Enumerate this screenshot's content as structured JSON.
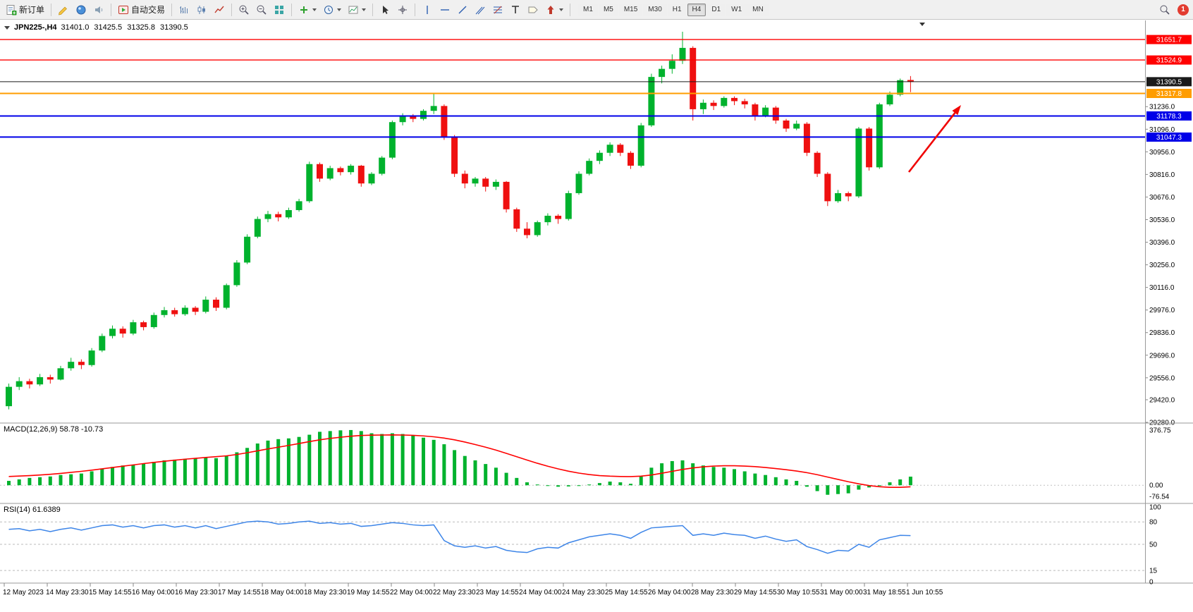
{
  "toolbar": {
    "new_order_label": "新订单",
    "autotrading_label": "自动交易",
    "timeframe_buttons": [
      "M1",
      "M5",
      "M15",
      "M30",
      "H1",
      "H4",
      "D1",
      "W1",
      "MN"
    ],
    "active_timeframe": "H4",
    "notification_count": "1"
  },
  "chart_header": {
    "symbol_period": "JPN225-,H4",
    "open": "31401.0",
    "high": "31425.5",
    "low": "31325.8",
    "close": "31390.5"
  },
  "chart_data": {
    "type": "candlestick",
    "symbol": "JPN225-",
    "period": "H4",
    "up_color": "#00b22d",
    "down_color": "#ef1010",
    "price_axis": {
      "min": 29280,
      "max": 31770,
      "ticks": [
        "31236.0",
        "31096.0",
        "30956.0",
        "30816.0",
        "30676.0",
        "30536.0",
        "30396.0",
        "30256.0",
        "30116.0",
        "29976.0",
        "29836.0",
        "29696.0",
        "29556.0",
        "29420.0",
        "29280.0"
      ]
    },
    "price_lines": [
      {
        "value": 31651.7,
        "label": "31651.7",
        "color": "#ff0000",
        "width": 1.4
      },
      {
        "value": 31524.9,
        "label": "31524.9",
        "color": "#ff0000",
        "width": 1.4
      },
      {
        "value": 31390.5,
        "label": "31390.5",
        "color": "#1a1a1a",
        "width": 1
      },
      {
        "value": 31317.8,
        "label": "31317.8",
        "color": "#ff9d00",
        "width": 2
      },
      {
        "value": 31178.3,
        "label": "31178.3",
        "color": "#0000e8",
        "width": 2
      },
      {
        "value": 31047.3,
        "label": "31047.3",
        "color": "#0000e8",
        "width": 2
      }
    ],
    "candles": [
      [
        29380,
        29520,
        29360,
        29500
      ],
      [
        29500,
        29560,
        29480,
        29535
      ],
      [
        29535,
        29550,
        29490,
        29515
      ],
      [
        29515,
        29580,
        29505,
        29560
      ],
      [
        29560,
        29575,
        29520,
        29545
      ],
      [
        29545,
        29630,
        29540,
        29615
      ],
      [
        29615,
        29680,
        29600,
        29655
      ],
      [
        29655,
        29670,
        29610,
        29635
      ],
      [
        29635,
        29740,
        29625,
        29725
      ],
      [
        29725,
        29830,
        29715,
        29815
      ],
      [
        29815,
        29880,
        29800,
        29860
      ],
      [
        29860,
        29875,
        29805,
        29830
      ],
      [
        29830,
        29915,
        29820,
        29900
      ],
      [
        29900,
        29910,
        29850,
        29870
      ],
      [
        29870,
        29960,
        29860,
        29945
      ],
      [
        29945,
        29995,
        29930,
        29975
      ],
      [
        29975,
        29990,
        29935,
        29950
      ],
      [
        29950,
        30005,
        29940,
        29990
      ],
      [
        29990,
        30000,
        29945,
        29965
      ],
      [
        29965,
        30060,
        29955,
        30040
      ],
      [
        30040,
        30055,
        29970,
        29990
      ],
      [
        29990,
        30140,
        29980,
        30130
      ],
      [
        30130,
        30285,
        30120,
        30270
      ],
      [
        30270,
        30445,
        30260,
        30430
      ],
      [
        30430,
        30555,
        30420,
        30540
      ],
      [
        30540,
        30590,
        30520,
        30570
      ],
      [
        30570,
        30585,
        30525,
        30550
      ],
      [
        30550,
        30610,
        30540,
        30595
      ],
      [
        30595,
        30665,
        30585,
        30650
      ],
      [
        30650,
        30895,
        30640,
        30880
      ],
      [
        30880,
        30890,
        30770,
        30790
      ],
      [
        30790,
        30870,
        30780,
        30855
      ],
      [
        30855,
        30865,
        30810,
        30830
      ],
      [
        30830,
        30880,
        30815,
        30870
      ],
      [
        30870,
        30875,
        30740,
        30760
      ],
      [
        30760,
        30830,
        30750,
        30820
      ],
      [
        30820,
        30930,
        30810,
        30920
      ],
      [
        30920,
        31150,
        30910,
        31140
      ],
      [
        31140,
        31195,
        31120,
        31180
      ],
      [
        31180,
        31190,
        31140,
        31160
      ],
      [
        31160,
        31220,
        31150,
        31210
      ],
      [
        31210,
        31320,
        31190,
        31240
      ],
      [
        31240,
        31250,
        31030,
        31050
      ],
      [
        31050,
        31060,
        30800,
        30820
      ],
      [
        30820,
        30840,
        30730,
        30760
      ],
      [
        30760,
        30800,
        30740,
        30790
      ],
      [
        30790,
        30800,
        30710,
        30740
      ],
      [
        30740,
        30785,
        30720,
        30770
      ],
      [
        30770,
        30775,
        30580,
        30600
      ],
      [
        30600,
        30610,
        30460,
        30480
      ],
      [
        30480,
        30520,
        30420,
        30440
      ],
      [
        30440,
        30530,
        30430,
        30520
      ],
      [
        30520,
        30575,
        30500,
        30560
      ],
      [
        30560,
        30570,
        30510,
        30540
      ],
      [
        30540,
        30715,
        30530,
        30700
      ],
      [
        30700,
        30835,
        30690,
        30820
      ],
      [
        30820,
        30915,
        30810,
        30900
      ],
      [
        30900,
        30965,
        30880,
        30950
      ],
      [
        30950,
        31015,
        30930,
        31000
      ],
      [
        31000,
        31010,
        30930,
        30950
      ],
      [
        30950,
        30960,
        30850,
        30870
      ],
      [
        30870,
        31135,
        30860,
        31120
      ],
      [
        31120,
        31440,
        31110,
        31420
      ],
      [
        31420,
        31490,
        31380,
        31470
      ],
      [
        31470,
        31560,
        31440,
        31520
      ],
      [
        31520,
        31700,
        31500,
        31600
      ],
      [
        31600,
        31610,
        31150,
        31220
      ],
      [
        31220,
        31280,
        31190,
        31260
      ],
      [
        31260,
        31275,
        31215,
        31240
      ],
      [
        31240,
        31300,
        31230,
        31290
      ],
      [
        31290,
        31300,
        31245,
        31270
      ],
      [
        31270,
        31285,
        31225,
        31250
      ],
      [
        31250,
        31260,
        31150,
        31180
      ],
      [
        31180,
        31245,
        31170,
        31230
      ],
      [
        31230,
        31240,
        31130,
        31150
      ],
      [
        31150,
        31160,
        31080,
        31100
      ],
      [
        31100,
        31150,
        31090,
        31130
      ],
      [
        31130,
        31140,
        30930,
        30950
      ],
      [
        30950,
        30960,
        30800,
        30820
      ],
      [
        30820,
        30830,
        30620,
        30650
      ],
      [
        30650,
        30720,
        30640,
        30700
      ],
      [
        30700,
        30710,
        30650,
        30680
      ],
      [
        30680,
        31110,
        30670,
        31100
      ],
      [
        31100,
        31110,
        30840,
        30860
      ],
      [
        30860,
        31260,
        30850,
        31250
      ],
      [
        31250,
        31330,
        31240,
        31310
      ],
      [
        31310,
        31410,
        31300,
        31400
      ],
      [
        31401,
        31425.5,
        31325.8,
        31390.5
      ]
    ],
    "x_labels": [
      "12 May 2023",
      "14 May 23:30",
      "15 May 14:55",
      "16 May 04:00",
      "16 May 23:30",
      "17 May 14:55",
      "18 May 04:00",
      "18 May 23:30",
      "19 May 14:55",
      "22 May 04:00",
      "22 May 23:30",
      "23 May 14:55",
      "24 May 04:00",
      "24 May 23:30",
      "25 May 14:55",
      "26 May 04:00",
      "28 May 23:30",
      "29 May 14:55",
      "30 May 10:55",
      "31 May 00:00",
      "31 May 18:55",
      "1 Jun 10:55"
    ],
    "macd": {
      "label": "MACD(12,26,9) 58.78 -10.73",
      "axis_labels": [
        "376.75",
        "0.00",
        "-76.54"
      ],
      "range": [
        -100,
        420
      ],
      "histogram_color": "#00b22d",
      "signal_color": "#ff0000",
      "histogram": [
        30,
        40,
        50,
        55,
        60,
        70,
        75,
        80,
        95,
        110,
        125,
        135,
        140,
        150,
        160,
        170,
        175,
        180,
        185,
        190,
        185,
        200,
        225,
        255,
        285,
        305,
        315,
        320,
        330,
        345,
        365,
        370,
        375,
        377,
        370,
        355,
        350,
        355,
        350,
        340,
        325,
        310,
        280,
        240,
        200,
        170,
        145,
        120,
        85,
        50,
        20,
        5,
        -5,
        -10,
        -8,
        -5,
        5,
        15,
        25,
        20,
        10,
        60,
        120,
        150,
        165,
        170,
        150,
        135,
        125,
        120,
        110,
        95,
        80,
        70,
        55,
        40,
        30,
        -10,
        -40,
        -65,
        -60,
        -55,
        -30,
        -15,
        0,
        20,
        40,
        58.78
      ],
      "signal": [
        60,
        63,
        66,
        70,
        75,
        81,
        88,
        95,
        103,
        112,
        121,
        130,
        139,
        148,
        156,
        164,
        171,
        178,
        184,
        190,
        195,
        201,
        210,
        222,
        235,
        248,
        260,
        272,
        285,
        298,
        310,
        320,
        328,
        335,
        340,
        342,
        343,
        344,
        343,
        341,
        337,
        331,
        322,
        310,
        295,
        278,
        260,
        240,
        218,
        195,
        172,
        150,
        130,
        112,
        96,
        83,
        73,
        66,
        62,
        60,
        59,
        62,
        70,
        82,
        95,
        108,
        118,
        126,
        131,
        133,
        133,
        131,
        127,
        121,
        114,
        106,
        97,
        86,
        72,
        56,
        40,
        24,
        10,
        -2,
        -10,
        -14,
        -14,
        -10.73
      ]
    },
    "rsi": {
      "label": "RSI(14) 61.6389",
      "axis_labels": [
        "100",
        "80",
        "50",
        "15",
        "0"
      ],
      "levels": [
        80,
        50,
        15
      ],
      "line_color": "#3d85e8",
      "values": [
        70,
        71,
        68,
        70,
        67,
        70,
        72,
        69,
        72,
        75,
        76,
        73,
        75,
        72,
        75,
        76,
        73,
        75,
        72,
        75,
        71,
        74,
        77,
        80,
        81,
        80,
        77,
        78,
        80,
        81,
        78,
        79,
        77,
        78,
        74,
        75,
        77,
        79,
        78,
        76,
        75,
        76,
        55,
        48,
        46,
        48,
        45,
        47,
        42,
        40,
        39,
        44,
        46,
        45,
        52,
        56,
        60,
        62,
        64,
        62,
        58,
        66,
        72,
        73,
        74,
        75,
        62,
        64,
        62,
        65,
        63,
        62,
        58,
        61,
        57,
        54,
        56,
        47,
        43,
        38,
        42,
        41,
        50,
        46,
        56,
        59,
        62,
        61.64
      ]
    },
    "annotation_arrow": {
      "from": [
        1289,
        215
      ],
      "to": [
        1363,
        120
      ],
      "color": "#f00202"
    }
  }
}
